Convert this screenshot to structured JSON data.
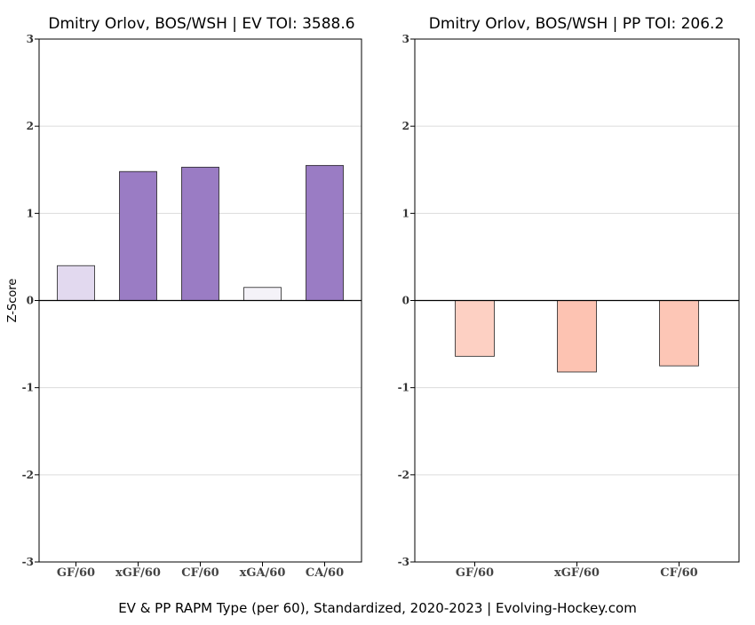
{
  "chart_data": [
    {
      "type": "bar",
      "title": "Dmitry Orlov, BOS/WSH  |  EV TOI: 3588.6",
      "ylabel": "Z-Score",
      "ylim": [
        -3,
        3
      ],
      "yticks": [
        -3,
        -2,
        -1,
        0,
        1,
        2,
        3
      ],
      "grid": true,
      "categories": [
        "GF/60",
        "xGF/60",
        "CF/60",
        "xGA/60",
        "CA/60"
      ],
      "values": [
        0.4,
        1.48,
        1.53,
        0.15,
        1.55
      ],
      "colors": [
        "#e2d9ef",
        "#9a7cc4",
        "#9a7cc4",
        "#f4f2f8",
        "#9a7cc4"
      ]
    },
    {
      "type": "bar",
      "title": "Dmitry Orlov, BOS/WSH  |  PP TOI: 206.2",
      "ylabel": "",
      "ylim": [
        -3,
        3
      ],
      "yticks": [
        -3,
        -2,
        -1,
        0,
        1,
        2,
        3
      ],
      "grid": true,
      "categories": [
        "GF/60",
        "xGF/60",
        "CF/60"
      ],
      "values": [
        -0.64,
        -0.82,
        -0.75
      ],
      "colors": [
        "#fdd0c3",
        "#fdc3b2",
        "#fdc6b6"
      ]
    }
  ],
  "caption": "EV & PP RAPM Type (per 60), Standardized, 2020-2023    |    Evolving-Hockey.com"
}
